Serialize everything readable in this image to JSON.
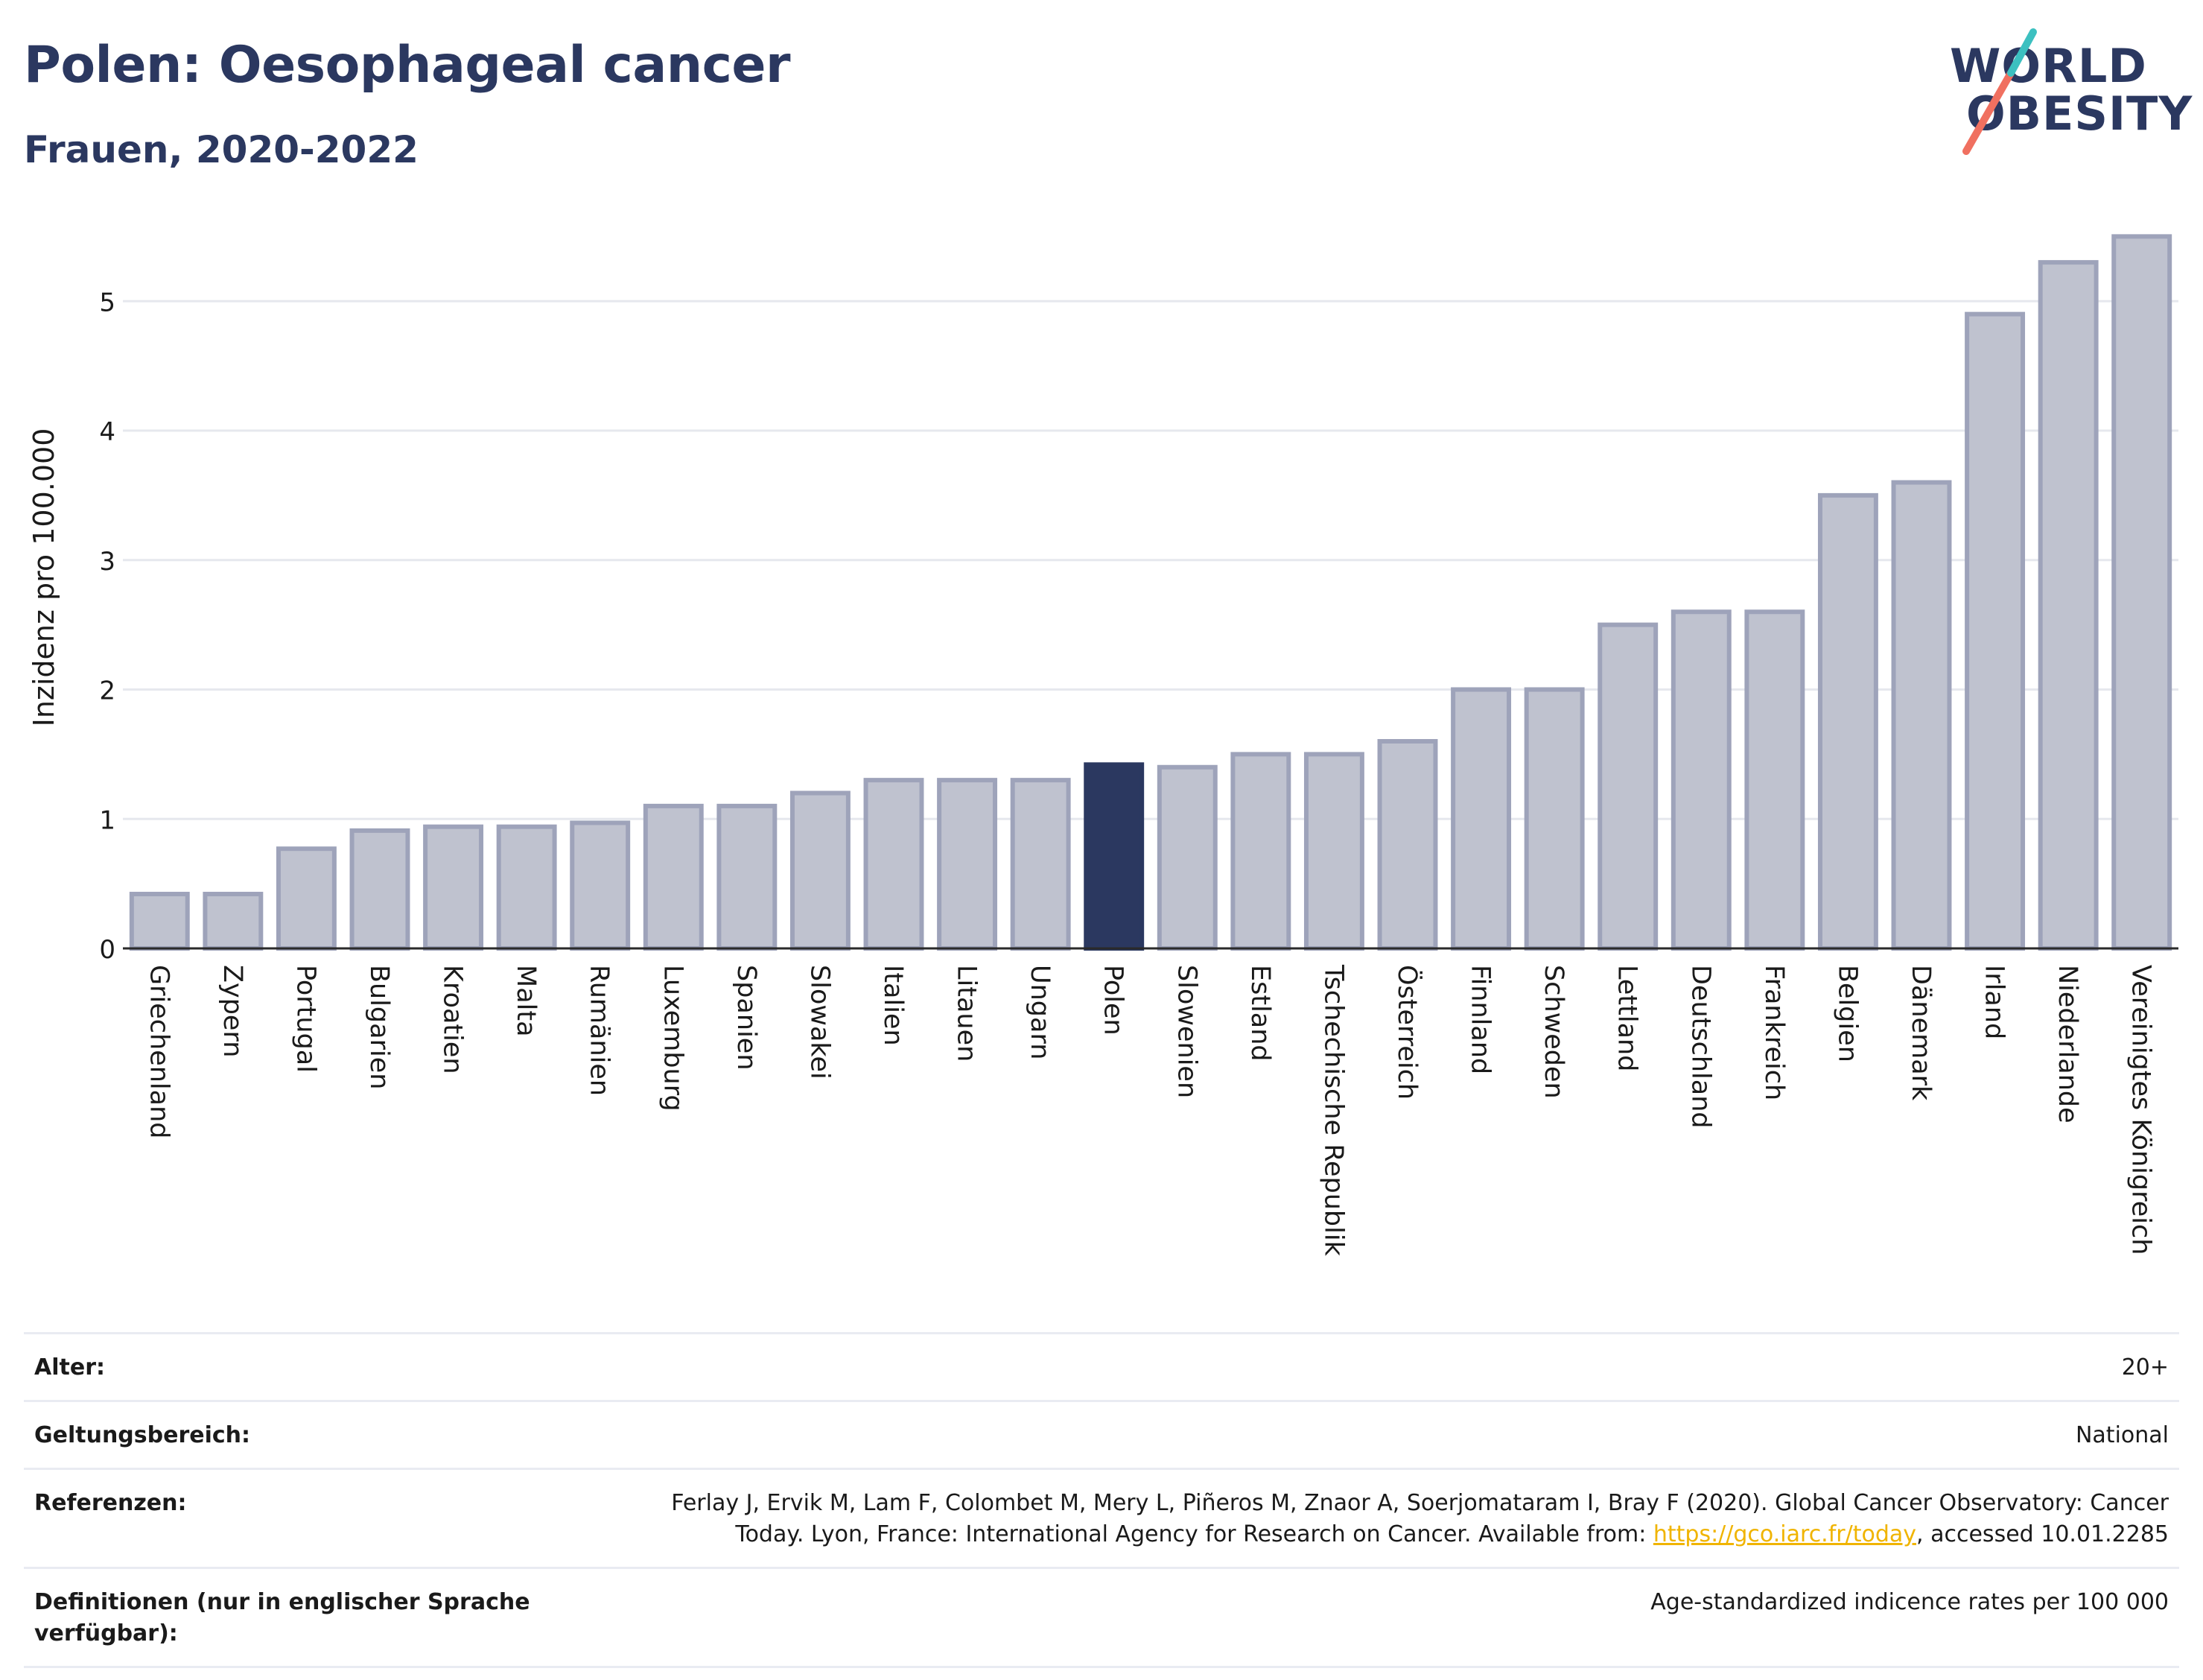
{
  "header": {
    "title": "Polen: Oesophageal cancer",
    "subtitle": "Frauen, 2020-2022"
  },
  "logo": {
    "line1": "WORLD",
    "line2": "OBESITY",
    "slash_colors": [
      "#3cc0c0",
      "#f07060"
    ]
  },
  "colors": {
    "highlight_bar": "#2b3860",
    "default_bar_fill": "#bfc2cf",
    "default_bar_stroke": "#9ea3ba",
    "title": "#2b3860",
    "link": "#f0b400"
  },
  "chart_data": {
    "type": "bar",
    "ylabel": "Inzidenz pro 100.000",
    "ylim": [
      0,
      5.6
    ],
    "yticks": [
      0,
      1,
      2,
      3,
      4,
      5
    ],
    "grid": true,
    "highlight": "Polen",
    "categories": [
      "Griechenland",
      "Zypern",
      "Portugal",
      "Bulgarien",
      "Kroatien",
      "Malta",
      "Rumänien",
      "Luxemburg",
      "Spanien",
      "Slowakei",
      "Italien",
      "Litauen",
      "Ungarn",
      "Polen",
      "Slowenien",
      "Estland",
      "Tschechische Republik",
      "Österreich",
      "Finnland",
      "Schweden",
      "Lettland",
      "Deutschland",
      "Frankreich",
      "Belgien",
      "Dänemark",
      "Irland",
      "Niederlande",
      "Vereinigtes Königreich"
    ],
    "values": [
      0.42,
      0.42,
      0.77,
      0.91,
      0.94,
      0.94,
      0.97,
      1.1,
      1.1,
      1.2,
      1.3,
      1.3,
      1.3,
      1.42,
      1.4,
      1.5,
      1.5,
      1.6,
      2.0,
      2.0,
      2.5,
      2.6,
      2.6,
      3.5,
      3.6,
      4.9,
      5.3,
      5.5
    ]
  },
  "info": {
    "rows": [
      {
        "label": "Alter:",
        "value": "20+"
      },
      {
        "label": "Geltungsbereich:",
        "value": "National"
      },
      {
        "label": "Referenzen:",
        "value_before": "Ferlay J, Ervik M, Lam F, Colombet M, Mery L, Piñeros M, Znaor A, Soerjomataram I, Bray F (2020). Global Cancer Observatory: Cancer Today. Lyon, France: International Agency for Research on Cancer. Available from: ",
        "link": "https://gco.iarc.fr/today",
        "value_after": ", accessed 10.01.2285"
      },
      {
        "label": "Definitionen (nur in englischer Sprache verfügbar):",
        "value": "Age-standardized indicence rates per 100 000"
      }
    ]
  }
}
